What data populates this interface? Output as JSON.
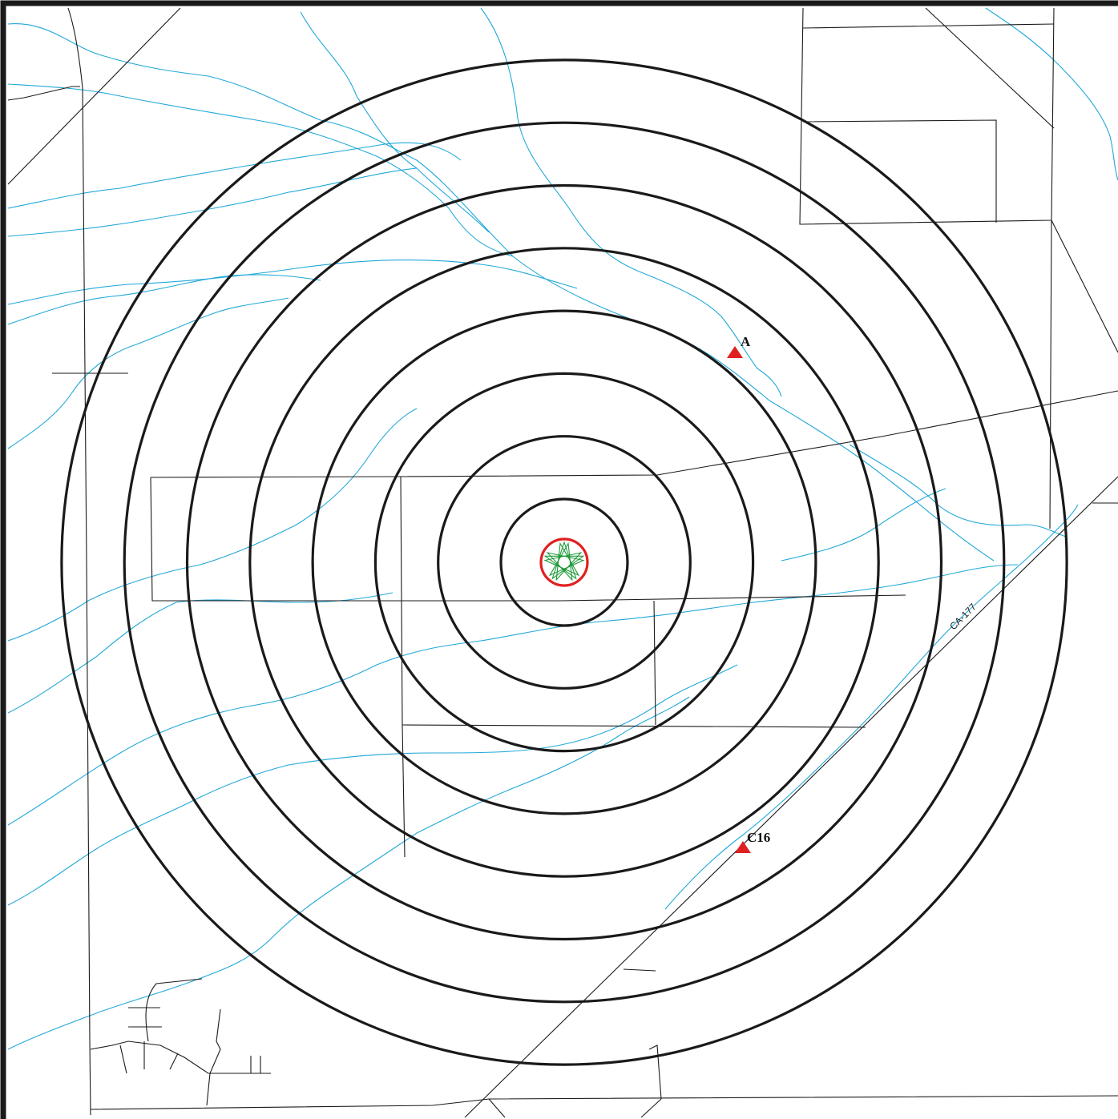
{
  "map": {
    "highway_label": "CA-177",
    "colors": {
      "road": "#1a1a1a",
      "stream": "#20a8d8",
      "ring": "#1a1a1a",
      "site_circle": "#e02020",
      "site_star": "#1f9a3a",
      "marker": "#e02020"
    },
    "markers": [
      {
        "id": "A",
        "label": "A"
      },
      {
        "id": "C16",
        "label": "C16"
      }
    ],
    "ring_count": 8
  }
}
